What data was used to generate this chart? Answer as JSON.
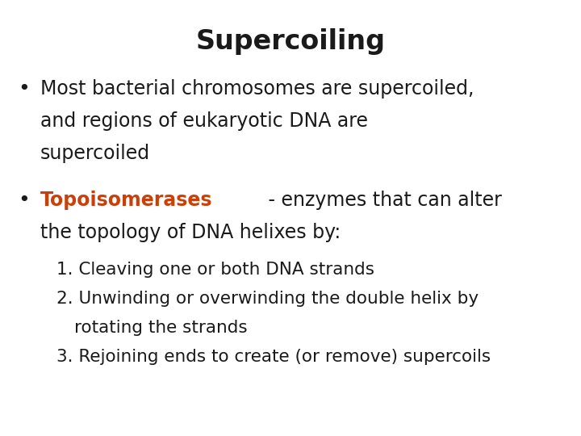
{
  "title": "Supercoiling",
  "title_fontsize": 24,
  "title_fontweight": "bold",
  "background_color": "#ffffff",
  "text_color": "#1a1a1a",
  "highlight_color": "#c8400a",
  "bullet1_line1": "Most bacterial chromosomes are supercoiled,",
  "bullet1_line2": "and regions of eukaryotic DNA are",
  "bullet1_line3": "supercoiled",
  "bullet2_highlight": "Topoisomerases",
  "bullet2_rest": " - enzymes that can alter",
  "bullet2_line2": "the topology of DNA helixes by:",
  "num1": "1. Cleaving one or both DNA strands",
  "num2_line1": "2. Unwinding or overwinding the double helix by",
  "num2_line2": "rotating the strands",
  "num3": "3. Rejoining ends to create (or remove) supercoils",
  "bullet_fontsize": 17,
  "sub_fontsize": 15.5
}
